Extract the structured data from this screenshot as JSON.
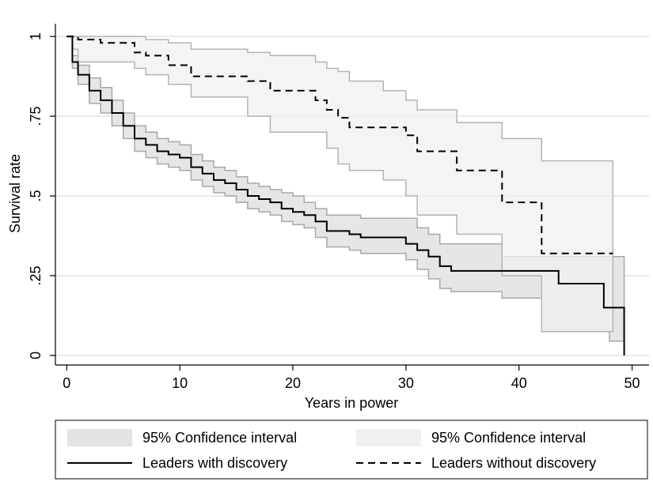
{
  "chart_data": {
    "type": "step",
    "xlabel": "Years in power",
    "ylabel": "Survival rate",
    "xlim": [
      -1,
      51.5
    ],
    "ylim": [
      -0.03,
      1.04
    ],
    "xticks": [
      0,
      10,
      20,
      30,
      40,
      50
    ],
    "yticks": [
      0,
      {
        "value": 0.25,
        "label": ".25"
      },
      {
        "value": 0.5,
        "label": ".5"
      },
      {
        "value": 0.75,
        "label": ".75"
      },
      1
    ],
    "grid": true,
    "series": [
      {
        "name": "Leaders with discovery",
        "ci_name": "95% Confidence interval",
        "color": "#000000",
        "dashed": false,
        "ci_color": "#e3e3e3",
        "ci_edge": "#a8a8a8",
        "x": [
          0,
          0.5,
          1,
          2,
          3,
          4,
          5,
          6,
          7,
          8,
          9,
          10,
          11,
          12,
          13,
          14,
          15,
          16,
          17,
          18,
          19,
          20,
          21,
          22,
          23,
          25,
          26,
          30,
          31,
          32,
          33,
          34,
          38.5,
          42,
          43.5,
          47.5,
          48,
          49.3
        ],
        "values": [
          1,
          0.92,
          0.88,
          0.83,
          0.8,
          0.76,
          0.72,
          0.68,
          0.66,
          0.64,
          0.63,
          0.62,
          0.59,
          0.57,
          0.55,
          0.54,
          0.52,
          0.5,
          0.49,
          0.48,
          0.46,
          0.45,
          0.44,
          0.42,
          0.39,
          0.38,
          0.37,
          0.35,
          0.33,
          0.31,
          0.28,
          0.265,
          0.265,
          0.265,
          0.225,
          0.15,
          0.15,
          0
        ],
        "ci_lower": [
          1,
          0.9,
          0.85,
          0.79,
          0.76,
          0.72,
          0.68,
          0.64,
          0.62,
          0.6,
          0.59,
          0.58,
          0.55,
          0.53,
          0.51,
          0.5,
          0.48,
          0.46,
          0.45,
          0.44,
          0.42,
          0.41,
          0.4,
          0.37,
          0.34,
          0.33,
          0.32,
          0.3,
          0.27,
          0.24,
          0.21,
          0.2,
          0.18,
          0.075,
          0.075,
          0.075,
          0.045,
          0.045
        ],
        "ci_upper": [
          1,
          0.94,
          0.91,
          0.87,
          0.84,
          0.8,
          0.76,
          0.72,
          0.7,
          0.68,
          0.67,
          0.66,
          0.63,
          0.61,
          0.59,
          0.58,
          0.56,
          0.54,
          0.53,
          0.52,
          0.51,
          0.5,
          0.48,
          0.46,
          0.44,
          0.44,
          0.43,
          0.43,
          0.4,
          0.38,
          0.35,
          0.35,
          0.31,
          0.31,
          0.31,
          0.31,
          0.31,
          0.31
        ]
      },
      {
        "name": "Leaders without discovery",
        "ci_name": "95% Confidence interval",
        "color": "#000000",
        "dashed": true,
        "ci_color": "#f0f0f0",
        "ci_edge": "#b4b4b4",
        "x": [
          0,
          0.5,
          1,
          3,
          6,
          7,
          9,
          11,
          16,
          18,
          22,
          23,
          24,
          25,
          28,
          30,
          31,
          34.5,
          38.5,
          42,
          48.3
        ],
        "values": [
          1,
          1,
          0.99,
          0.98,
          0.95,
          0.94,
          0.91,
          0.875,
          0.86,
          0.83,
          0.8,
          0.77,
          0.745,
          0.715,
          0.715,
          0.69,
          0.64,
          0.58,
          0.48,
          0.32,
          0.32
        ],
        "ci_lower": [
          1,
          0.96,
          0.92,
          0.92,
          0.9,
          0.88,
          0.85,
          0.81,
          0.75,
          0.7,
          0.7,
          0.65,
          0.6,
          0.58,
          0.55,
          0.5,
          0.44,
          0.38,
          0.25,
          0.075,
          0.075
        ],
        "ci_upper": [
          1,
          1,
          1,
          1,
          1,
          0.99,
          0.98,
          0.96,
          0.95,
          0.94,
          0.92,
          0.9,
          0.89,
          0.86,
          0.83,
          0.8,
          0.77,
          0.73,
          0.68,
          0.61,
          0.61
        ]
      }
    ]
  }
}
